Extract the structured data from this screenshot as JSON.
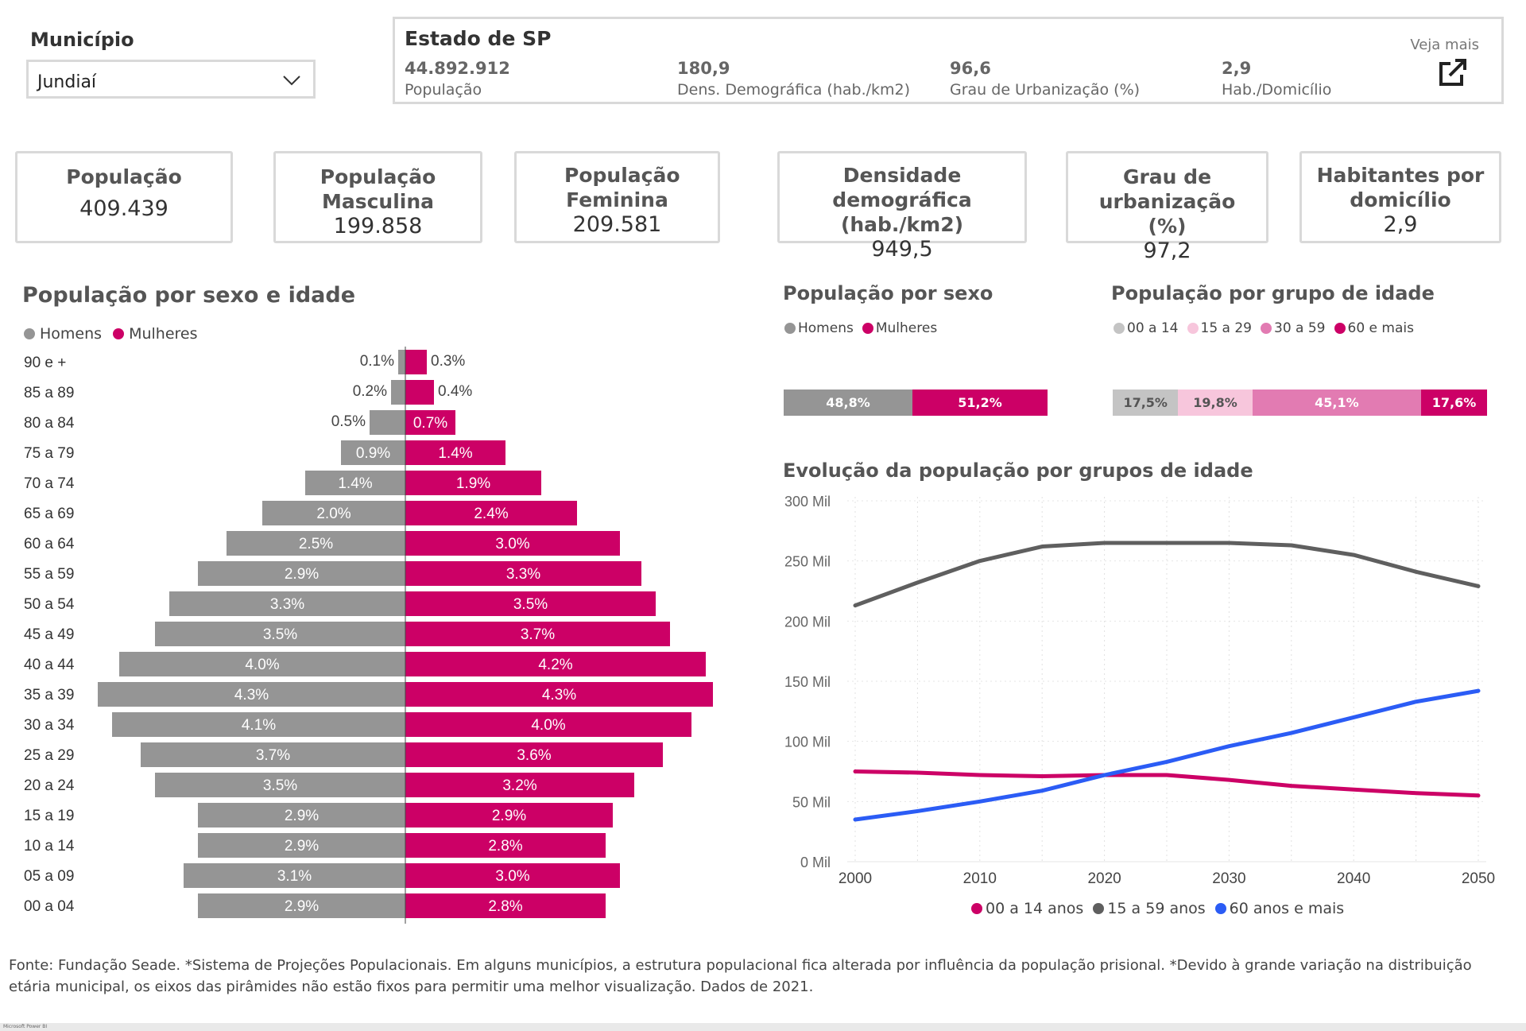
{
  "municipio": {
    "label": "Município",
    "selected": "Jundiaí"
  },
  "estado": {
    "title": "Estado de SP",
    "stats": [
      {
        "value": "44.892.912",
        "label": "População"
      },
      {
        "value": "180,9",
        "label": "Dens. Demográfica (hab./km2)"
      },
      {
        "value": "96,6",
        "label": "Grau de Urbanização (%)"
      },
      {
        "value": "2,9",
        "label": "Hab./Domicílio"
      }
    ],
    "link_label": "Veja mais",
    "link_icon": "external-link-icon"
  },
  "kpis": [
    {
      "title": "População",
      "value": "409.439"
    },
    {
      "title": "População Masculina",
      "value": "199.858"
    },
    {
      "title": "População Feminina",
      "value": "209.581"
    },
    {
      "title": "Densidade demográfica (hab./km2)",
      "value": "949,5"
    },
    {
      "title": "Grau de urbanização (%)",
      "value": "97,2"
    },
    {
      "title": "Habitantes por domicílio",
      "value": "2,9"
    }
  ],
  "chart_data": [
    {
      "type": "bar",
      "orientation": "horizontal-pyramid",
      "title": "População por sexo e idade",
      "categories": [
        "90 e +",
        "85 a 89",
        "80 a 84",
        "75 a 79",
        "70 a 74",
        "65 a 69",
        "60 a 64",
        "55 a 59",
        "50 a 54",
        "45 a 49",
        "40 a 44",
        "35 a 39",
        "30 a 34",
        "25 a 29",
        "20 a 24",
        "15 a 19",
        "10 a 14",
        "05 a 09",
        "00 a 04"
      ],
      "series": [
        {
          "name": "Homens",
          "color": "#959595",
          "values": [
            0.1,
            0.2,
            0.5,
            0.9,
            1.4,
            2.0,
            2.5,
            2.9,
            3.3,
            3.5,
            4.0,
            4.3,
            4.1,
            3.7,
            3.5,
            2.9,
            2.9,
            3.1,
            2.9
          ],
          "labels": [
            "0.1%",
            "0.2%",
            "0.5%",
            "0.9%",
            "1.4%",
            "2.0%",
            "2.5%",
            "2.9%",
            "3.3%",
            "3.5%",
            "4.0%",
            "4.3%",
            "4.1%",
            "3.7%",
            "3.5%",
            "2.9%",
            "2.9%",
            "3.1%",
            "2.9%"
          ]
        },
        {
          "name": "Mulheres",
          "color": "#cc0066",
          "values": [
            0.3,
            0.4,
            0.7,
            1.4,
            1.9,
            2.4,
            3.0,
            3.3,
            3.5,
            3.7,
            4.2,
            4.3,
            4.0,
            3.6,
            3.2,
            2.9,
            2.8,
            3.0,
            2.8
          ],
          "labels": [
            "0.3%",
            "0.4%",
            "0.7%",
            "1.4%",
            "1.9%",
            "2.4%",
            "3.0%",
            "3.3%",
            "3.5%",
            "3.7%",
            "4.2%",
            "4.3%",
            "4.0%",
            "3.6%",
            "3.2%",
            "2.9%",
            "2.8%",
            "3.0%",
            "2.8%"
          ]
        }
      ]
    },
    {
      "type": "bar",
      "orientation": "stacked-100",
      "title": "População por sexo",
      "series": [
        {
          "name": "Homens",
          "value": 48.8,
          "label": "48,8%",
          "color": "#959595"
        },
        {
          "name": "Mulheres",
          "value": 51.2,
          "label": "51,2%",
          "color": "#cc0066"
        }
      ]
    },
    {
      "type": "bar",
      "orientation": "stacked-100",
      "title": "População por grupo de idade",
      "series": [
        {
          "name": "00 a 14",
          "value": 17.5,
          "label": "17,5%",
          "color": "#c4c4c4"
        },
        {
          "name": "15 a 29",
          "value": 19.8,
          "label": "19,8%",
          "color": "#f7c6dc"
        },
        {
          "name": "30 a 59",
          "value": 45.1,
          "label": "45,1%",
          "color": "#e27bb2"
        },
        {
          "name": "60 e mais",
          "value": 17.6,
          "label": "17,6%",
          "color": "#cc0066"
        }
      ]
    },
    {
      "type": "line",
      "title": "Evolução da população por grupos de idade",
      "x": [
        2000,
        2005,
        2010,
        2015,
        2020,
        2025,
        2030,
        2035,
        2040,
        2045,
        2050
      ],
      "x_ticks": [
        2000,
        2010,
        2020,
        2030,
        2040,
        2050
      ],
      "y_ticks": [
        0,
        50,
        100,
        150,
        200,
        250,
        300
      ],
      "y_tick_labels": [
        "0 Mil",
        "50 Mil",
        "100 Mil",
        "150 Mil",
        "200 Mil",
        "250 Mil",
        "300 Mil"
      ],
      "ylim": [
        0,
        300
      ],
      "grid": true,
      "legend_position": "bottom",
      "series": [
        {
          "name": "00 a 14 anos",
          "color": "#cc0066",
          "values": [
            75,
            74,
            72,
            71,
            72,
            72,
            68,
            63,
            60,
            57,
            55
          ]
        },
        {
          "name": "15 a 59 anos",
          "color": "#5f5f5f",
          "values": [
            213,
            232,
            250,
            262,
            265,
            265,
            265,
            263,
            255,
            241,
            229
          ]
        },
        {
          "name": "60 anos e mais",
          "color": "#2b5cf5",
          "values": [
            35,
            42,
            50,
            59,
            72,
            83,
            96,
            107,
            120,
            133,
            142
          ]
        }
      ]
    }
  ],
  "footer": "Fonte: Fundação Seade. *Sistema de Projeções Populacionais. Em alguns municípios, a estrutura populacional fica alterada por influência da população prisional. *Devido à grande variação na distribuição etária municipal, os eixos das pirâmides não estão fixos para permitir uma melhor visualização. Dados de 2021.",
  "taskbar_label": "Microsoft Power BI"
}
